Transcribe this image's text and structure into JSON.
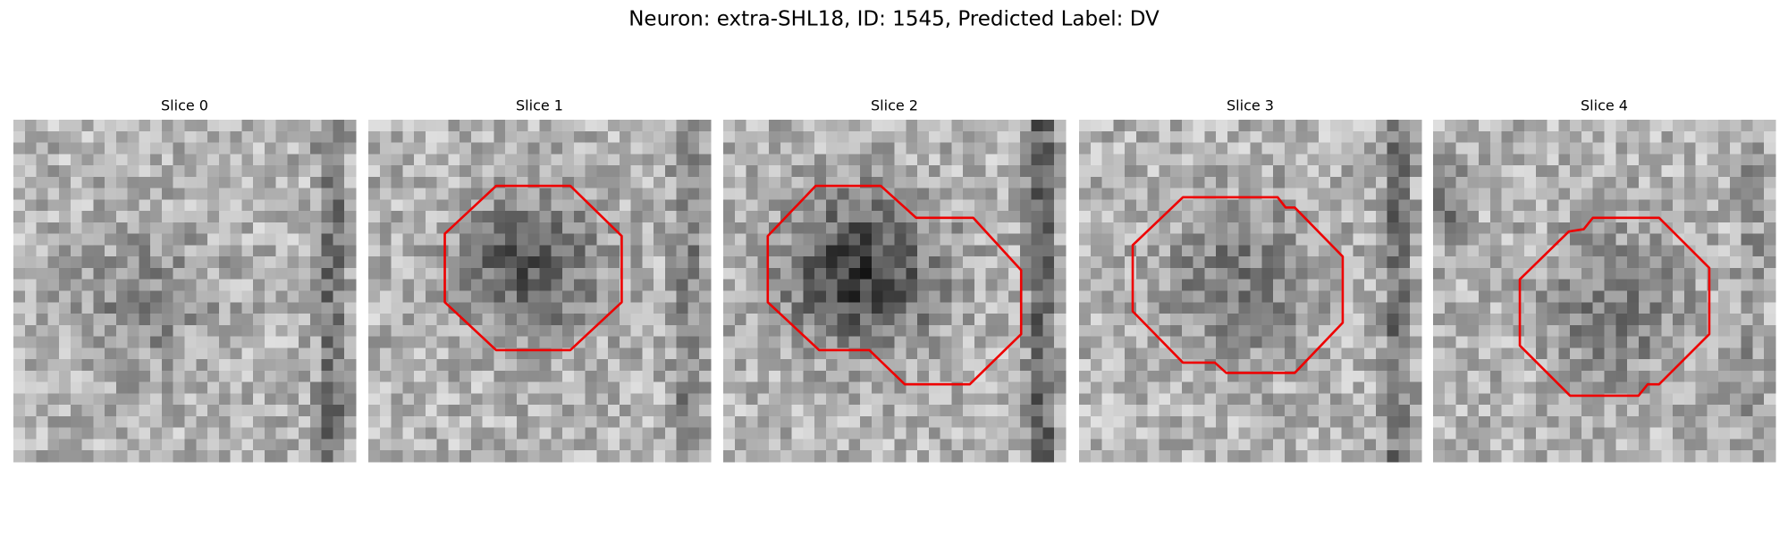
{
  "title": "Neuron: extra-SHL18, ID: 1545, Predicted Label: DV",
  "panels": [
    {
      "title": "Slice 0"
    },
    {
      "title": "Slice 1"
    },
    {
      "title": "Slice 2"
    },
    {
      "title": "Slice 3"
    },
    {
      "title": "Slice 4"
    }
  ]
}
